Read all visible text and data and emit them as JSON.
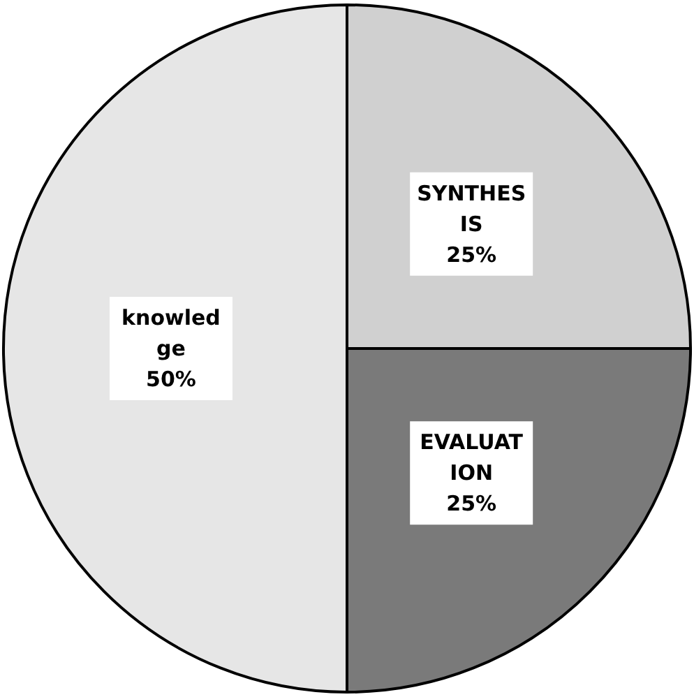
{
  "chart_data": {
    "type": "pie",
    "categories": [
      "SYNTHESIS",
      "EVALUATION",
      "knowledge"
    ],
    "values": [
      25,
      25,
      50
    ],
    "colors": [
      "#d0d0d0",
      "#7a7a7a",
      "#e6e6e6"
    ],
    "value_labels": [
      "25%",
      "25%",
      "50%"
    ],
    "legend": false
  }
}
